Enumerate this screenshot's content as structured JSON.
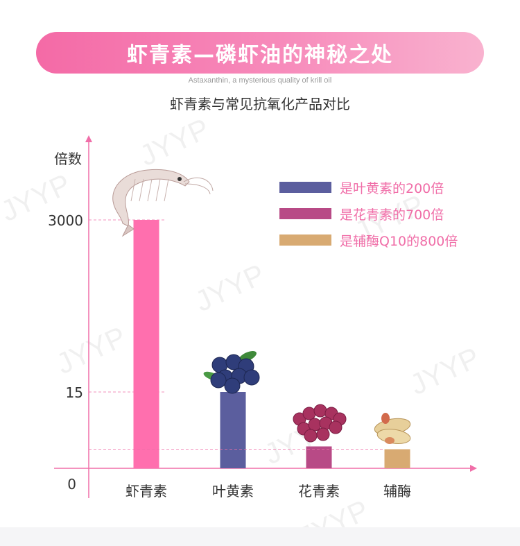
{
  "header": {
    "title": "虾青素—磷虾油的神秘之处",
    "subtitle_en": "Astaxanthin, a mysterious quality of krill oil",
    "subtitle_cn": "虾青素与常见抗氧化产品对比"
  },
  "watermark": "JYYP",
  "colors": {
    "banner_pink": "#f46aa6",
    "axis_pink": "#f06ea8",
    "legend_text": "#f06ea8",
    "bar_astaxanthin": "#ff6fae",
    "bar_lutein": "#5b5e9e",
    "bar_anthocyanin": "#b84a86",
    "bar_coq10": "#d8aa72"
  },
  "chart_data": {
    "type": "bar",
    "ylabel": "倍数",
    "y_ticks": [
      "3000",
      "15",
      "0"
    ],
    "categories": [
      "虾青素",
      "叶黄素",
      "花青素",
      "辅酶"
    ],
    "values": [
      3000,
      15,
      4.3,
      3.75
    ],
    "bar_colors": [
      "#ff6fae",
      "#5b5e9e",
      "#b84a86",
      "#d8aa72"
    ],
    "legend": [
      {
        "label": "是叶黄素的200倍",
        "color": "#5b5e9e"
      },
      {
        "label": "是花青素的700倍",
        "color": "#b84a86"
      },
      {
        "label": "是辅酶Q10的800倍",
        "color": "#d8aa72"
      }
    ],
    "legend_position": "top-right",
    "scale": "broken axis (non-linear)",
    "icons": [
      "shrimp-icon",
      "blueberry-icon",
      "grape-icon",
      "peanut-icon"
    ]
  }
}
